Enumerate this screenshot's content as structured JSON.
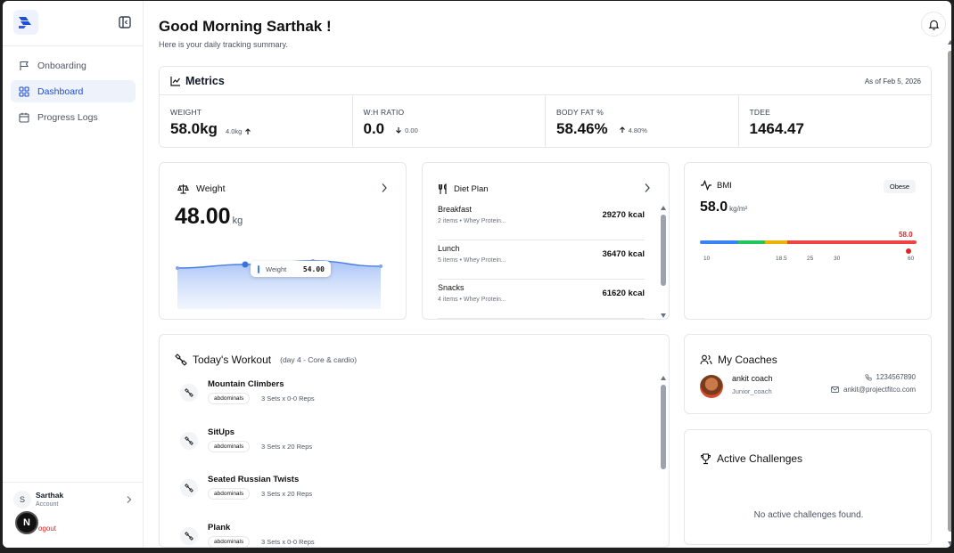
{
  "sidebar": {
    "items": [
      {
        "label": "Onboarding",
        "icon": "flag-icon"
      },
      {
        "label": "Dashboard",
        "icon": "grid-icon",
        "active": true
      },
      {
        "label": "Progress Logs",
        "icon": "calendar-icon"
      }
    ],
    "user": {
      "initial": "S",
      "name": "Sarthak",
      "role": "Account"
    },
    "badge": "N",
    "logout": "ogout"
  },
  "header": {
    "greeting": "Good Morning Sarthak !",
    "subtitle": "Here is your daily tracking summary."
  },
  "metrics": {
    "title": "Metrics",
    "date": "As of Feb 5, 2026",
    "items": [
      {
        "label": "WEIGHT",
        "value": "58.0kg",
        "delta": "4.0kg",
        "direction": "up"
      },
      {
        "label": "W:H RATIO",
        "value": "0.0",
        "delta": "0.00",
        "direction": "down"
      },
      {
        "label": "BODY FAT %",
        "value": "58.46%",
        "delta": "4.80%",
        "direction": "up"
      },
      {
        "label": "TDEE",
        "value": "1464.47",
        "delta": "",
        "direction": ""
      }
    ]
  },
  "weight": {
    "title": "Weight",
    "value": "48.00",
    "unit": "kg",
    "tooltip_label": "Weight",
    "tooltip_value": "54.00",
    "trend_points": [
      50,
      54,
      58,
      52
    ]
  },
  "diet": {
    "title": "Diet Plan",
    "meals": [
      {
        "name": "Breakfast",
        "desc": "2 items • Whey Protein...",
        "kcal": "29270 kcal"
      },
      {
        "name": "Lunch",
        "desc": "5 items • Whey Protein...",
        "kcal": "36470 kcal"
      },
      {
        "name": "Snacks",
        "desc": "4 items • Whey Protein...",
        "kcal": "61620 kcal"
      }
    ]
  },
  "bmi": {
    "title": "BMI",
    "badge": "Obese",
    "value": "58.0",
    "unit": "kg/m²",
    "marker_label": "58.0",
    "marker_value": 58.0,
    "ticks": [
      "10",
      "18.5",
      "25",
      "30",
      "60"
    ],
    "colors": {
      "underweight": "#3b82f6",
      "normal": "#22c55e",
      "overweight": "#eab308",
      "obese": "#ef4444"
    }
  },
  "workout": {
    "title": "Today's Workout",
    "day": "(day 4 - Core & cardio)",
    "exercises": [
      {
        "name": "Mountain Climbers",
        "tag": "abdominals",
        "sets": "3 Sets x 0-0 Reps"
      },
      {
        "name": "SitUps",
        "tag": "abdominals",
        "sets": "3 Sets x 20 Reps"
      },
      {
        "name": "Seated Russian Twists",
        "tag": "abdominals",
        "sets": "3 Sets x 20 Reps"
      },
      {
        "name": "Plank",
        "tag": "abdominals",
        "sets": "3 Sets x 0-0 Reps"
      }
    ]
  },
  "coaches": {
    "title": "My Coaches",
    "name": "ankit coach",
    "role": "Junior_coach",
    "phone": "1234567890",
    "email": "ankit@projectfitco.com"
  },
  "challenges": {
    "title": "Active Challenges",
    "empty": "No active challenges found."
  }
}
